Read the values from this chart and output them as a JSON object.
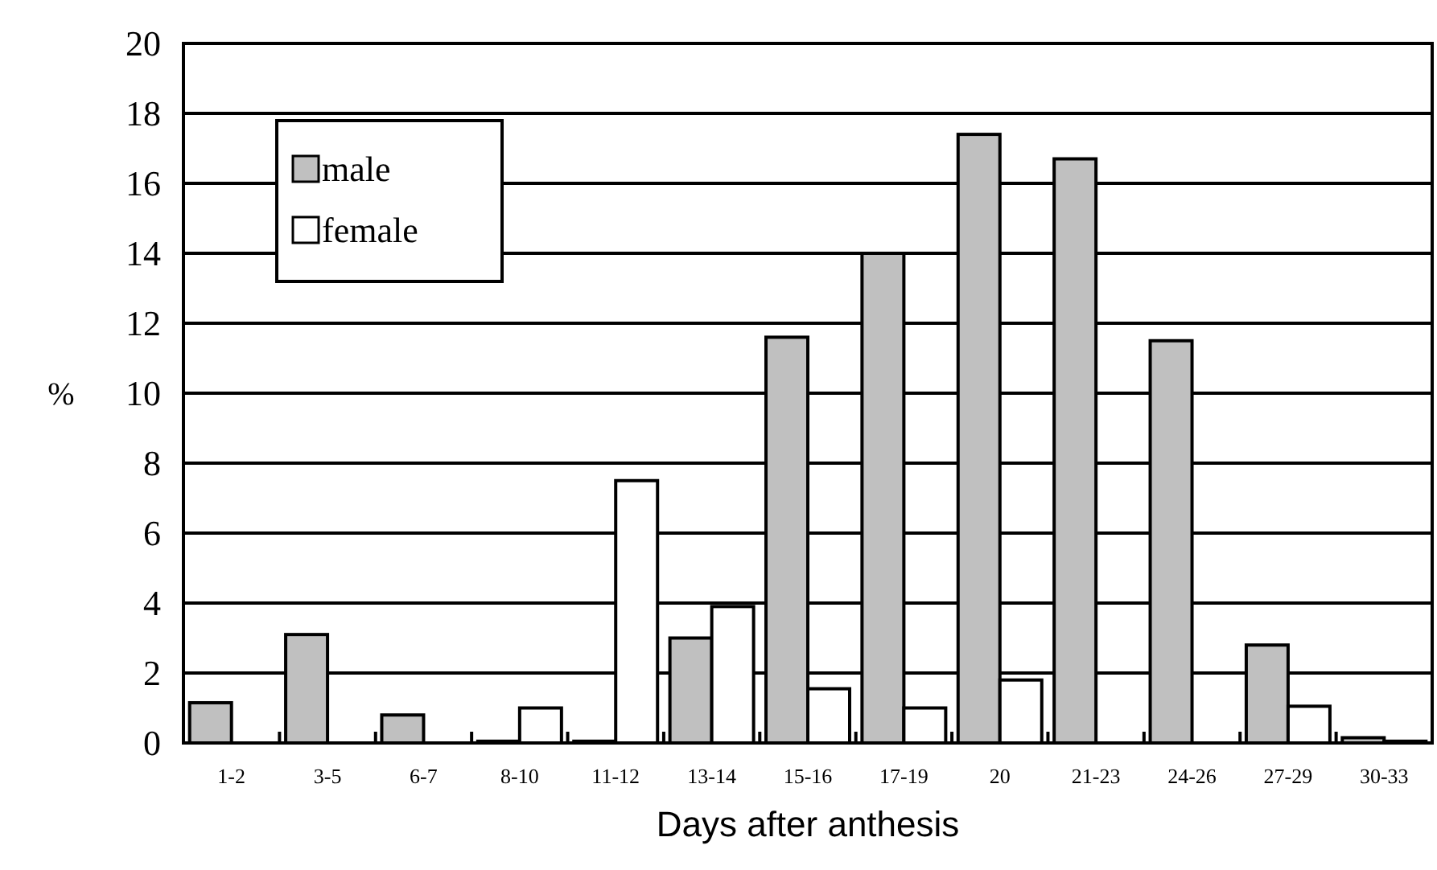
{
  "chart_data": {
    "type": "bar",
    "xlabel": "Days after anthesis",
    "ylabel": "%",
    "categories": [
      "1-2",
      "3-5",
      "6-7",
      "8-10",
      "11-12",
      "13-14",
      "15-16",
      "17-19",
      "20",
      "21-23",
      "24-26",
      "27-29",
      "30-33"
    ],
    "series": [
      {
        "name": "male",
        "color": "#c0c0c0",
        "values": [
          1.15,
          3.1,
          0.8,
          0.05,
          0.05,
          3.0,
          11.6,
          14.0,
          17.4,
          16.7,
          11.5,
          2.8,
          0.15
        ]
      },
      {
        "name": "female",
        "color": "#ffffff",
        "values": [
          0,
          0,
          0,
          1.0,
          7.5,
          3.9,
          1.55,
          1.0,
          1.8,
          0,
          0,
          1.05,
          0.05
        ]
      }
    ],
    "ylim": [
      0,
      20
    ],
    "yticks": [
      0,
      2,
      4,
      6,
      8,
      10,
      12,
      14,
      16,
      18,
      20
    ],
    "grid": "y",
    "legend": "top left"
  }
}
